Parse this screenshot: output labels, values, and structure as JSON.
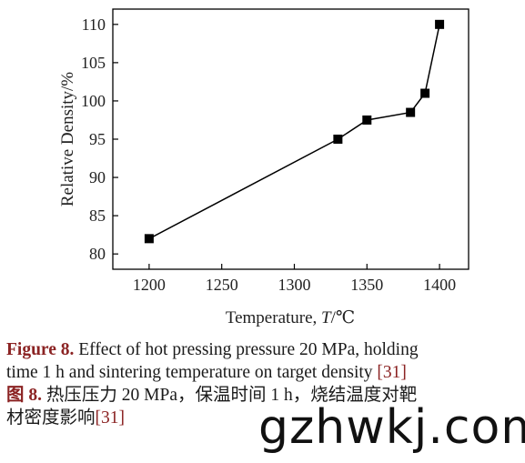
{
  "chart_data": {
    "type": "line",
    "x": [
      1200,
      1330,
      1350,
      1380,
      1390,
      1400
    ],
    "y": [
      82,
      95,
      97.5,
      98.5,
      101,
      110
    ],
    "xlabel_prefix": "Temperature, ",
    "xlabel_var": "T",
    "xlabel_unit": "/℃",
    "ylabel": "Relative Density/%",
    "xlim": [
      1175,
      1420
    ],
    "ylim": [
      78,
      112
    ],
    "xticks": [
      1200,
      1250,
      1300,
      1350,
      1400
    ],
    "yticks": [
      80,
      85,
      90,
      95,
      100,
      105,
      110
    ],
    "grid": false,
    "marker": "square",
    "colors": {
      "line": "#000000",
      "caption_accent": "#8b2323"
    }
  },
  "caption": {
    "en_label": "Figure 8.",
    "en_text_1": " Effect of hot pressing pressure 20 MPa, holding",
    "en_text_2": "time 1 h and sintering temperature on target density ",
    "en_ref": "[31]",
    "zh_label": "图 8.",
    "zh_text_1": " 热压压力 20 MPa，保温时间 1 h，烧结温度对靶",
    "zh_text_2": "材密度影响",
    "zh_ref": "[31]"
  },
  "watermark": "gzhwkj.com"
}
